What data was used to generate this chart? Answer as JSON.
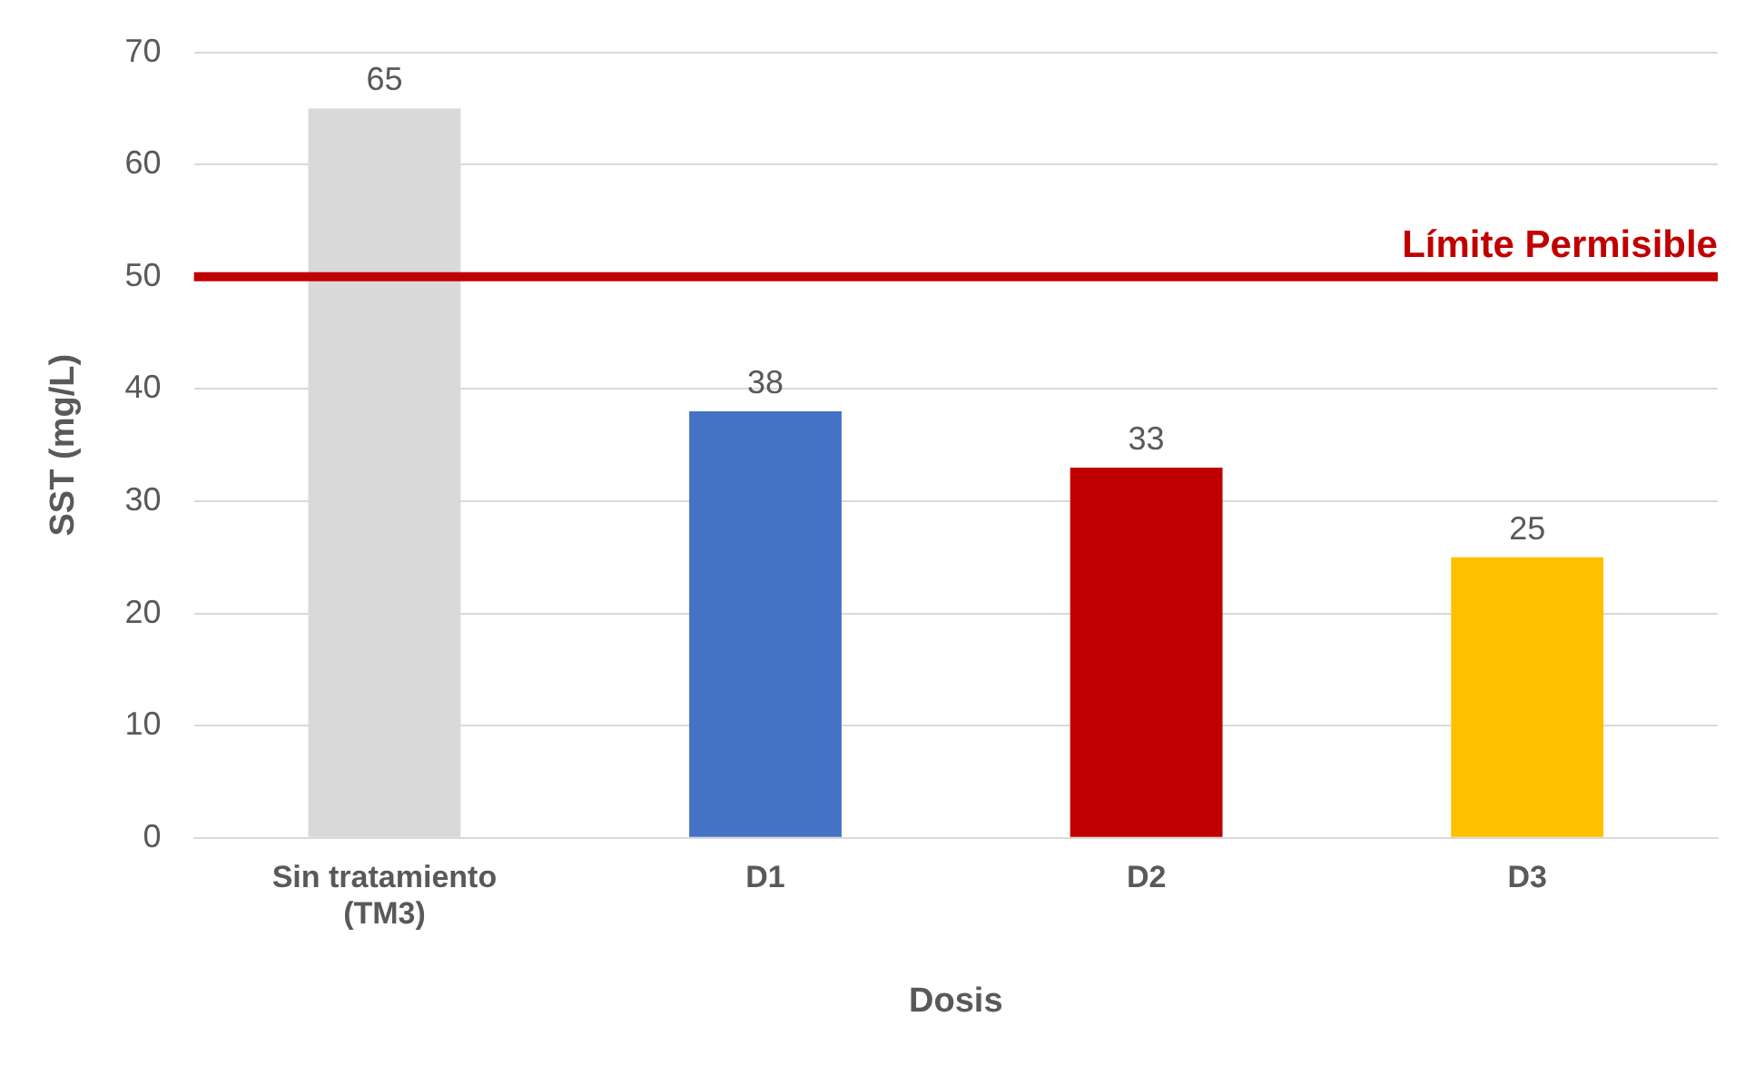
{
  "chart_data": {
    "type": "bar",
    "xlabel": "Dosis",
    "ylabel": "SST (mg/L)",
    "categories": [
      "Sin tratamiento\n(TM3)",
      "D1",
      "D2",
      "D3"
    ],
    "values": [
      65,
      38,
      33,
      25
    ],
    "colors": [
      "#d9d9d9",
      "#4472c4",
      "#c00000",
      "#ffc000"
    ],
    "ylim": [
      0,
      70
    ],
    "yticks": [
      0,
      10,
      20,
      30,
      40,
      50,
      60,
      70
    ],
    "grid": "y",
    "legend": false,
    "data_labels": true,
    "ref_lines": [
      {
        "axis": "y",
        "value": 50,
        "label": "Límite Permisible",
        "color": "#c00000"
      }
    ]
  }
}
